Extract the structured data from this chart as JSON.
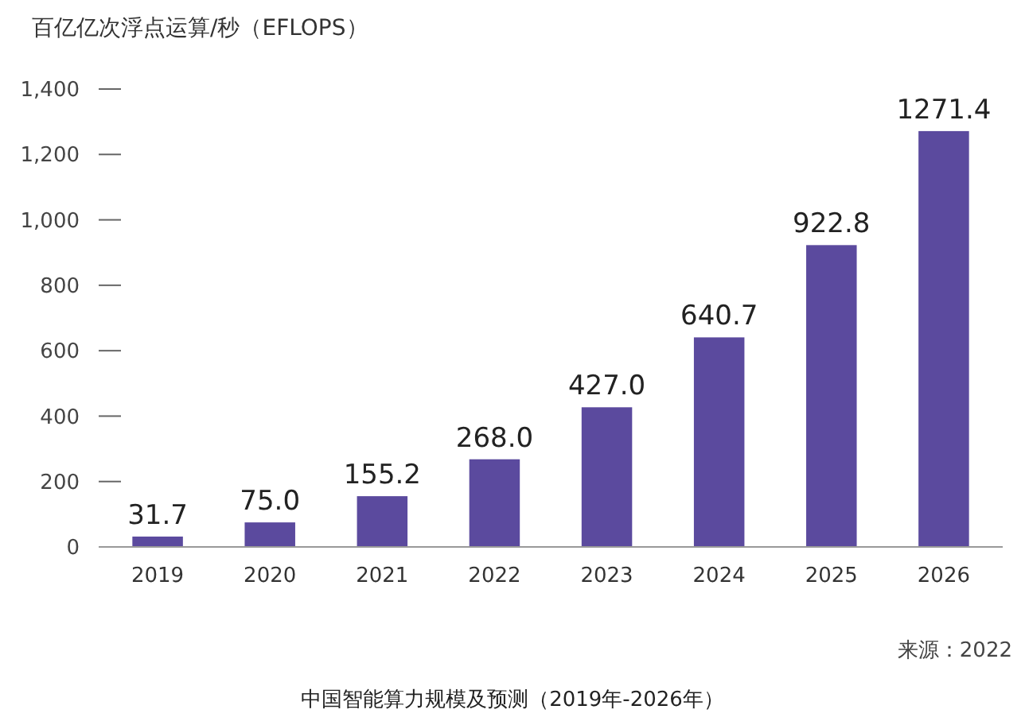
{
  "chart_data": {
    "type": "bar",
    "title": "中国智能算力规模及预测（2019年-2026年）",
    "ylabel": "百亿亿次浮点运算/秒（EFLOPS）",
    "categories": [
      "2019",
      "2020",
      "2021",
      "2022",
      "2023",
      "2024",
      "2025",
      "2026"
    ],
    "values": [
      31.7,
      75.0,
      155.2,
      268.0,
      427.0,
      640.7,
      922.8,
      1271.4
    ],
    "value_labels": [
      "31.7",
      "75.0",
      "155.2",
      "268.0",
      "427.0",
      "640.7",
      "922.8",
      "1271.4"
    ],
    "color": "#5b4a9e",
    "ylim": [
      0,
      1400
    ],
    "yticks": [
      {
        "value": 0,
        "label": "0"
      },
      {
        "value": 200,
        "label": "200"
      },
      {
        "value": 400,
        "label": "400"
      },
      {
        "value": 600,
        "label": "600"
      },
      {
        "value": 800,
        "label": "800"
      },
      {
        "value": 1000,
        "label": "1,000"
      },
      {
        "value": 1200,
        "label": "1,200"
      },
      {
        "value": 1400,
        "label": "1,400"
      }
    ],
    "grid": false,
    "annotations": [
      "来源：2022"
    ]
  }
}
